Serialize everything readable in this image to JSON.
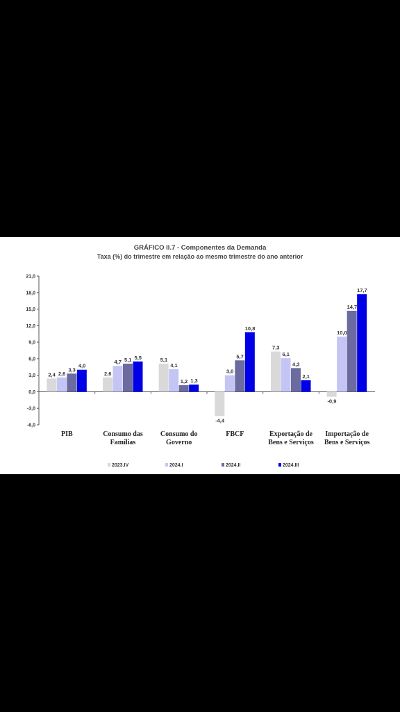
{
  "chart_data": {
    "type": "bar",
    "title": "GRÁFICO II.7 - Componentes  da Demanda",
    "subtitle": "Taxa (%)  do trimestre em relação ao mesmo trimestre do ano anterior",
    "categories": [
      [
        "PIB"
      ],
      [
        "Consumo das",
        "Famílias"
      ],
      [
        "Consumo do",
        "Governo"
      ],
      [
        "FBCF"
      ],
      [
        "Exportação de",
        "Bens e Serviços"
      ],
      [
        "Importação de",
        "Bens e Serviços"
      ]
    ],
    "series": [
      {
        "name": "2023.IV",
        "color": "#d9d9d9",
        "values": [
          2.4,
          2.6,
          5.1,
          -4.4,
          7.3,
          -0.9
        ]
      },
      {
        "name": "2024.I",
        "color": "#c5c5f5",
        "values": [
          2.6,
          4.7,
          4.1,
          3.0,
          6.1,
          10.0
        ]
      },
      {
        "name": "2024.II",
        "color": "#6b6b9f",
        "values": [
          3.3,
          5.1,
          1.2,
          5.7,
          4.3,
          14.7
        ]
      },
      {
        "name": "2024.III",
        "color": "#0000e6",
        "values": [
          4.0,
          5.5,
          1.3,
          10.8,
          2.1,
          17.7
        ]
      }
    ],
    "ylim": [
      -6,
      21
    ],
    "yticks": [
      -6,
      -3,
      0,
      3,
      6,
      9,
      12,
      15,
      18,
      21
    ],
    "ytick_labels": [
      "-6,0",
      "-3,0",
      "0,0",
      "3,0",
      "6,0",
      "9,0",
      "12,0",
      "15,0",
      "18,0",
      "21,0"
    ],
    "data_labels": [
      [
        "2,4",
        "2,6",
        "5,1",
        "-4,4",
        "7,3",
        "-0,9"
      ],
      [
        "2,6",
        "4,7",
        "4,1",
        "3,0",
        "6,1",
        "10,0"
      ],
      [
        "3,3",
        "5,1",
        "1,2",
        "5,7",
        "4,3",
        "14,7"
      ],
      [
        "4,0",
        "5,5",
        "1,3",
        "10,8",
        "2,1",
        "17,7"
      ]
    ],
    "grid": false,
    "legend": "bottom"
  }
}
